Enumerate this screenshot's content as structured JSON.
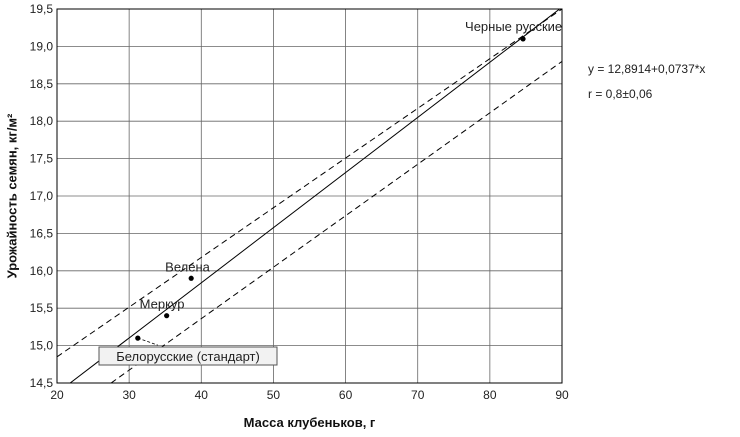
{
  "chart_data": {
    "type": "scatter",
    "title": "",
    "xlabel": "Масса клубеньков, г",
    "ylabel": "Урожайность семян, кг/м²",
    "xlim": [
      20,
      90
    ],
    "ylim": [
      14.5,
      19.5
    ],
    "x_ticks": [
      20,
      30,
      40,
      50,
      60,
      70,
      80,
      90
    ],
    "y_ticks": [
      14.5,
      15.0,
      15.5,
      16.0,
      16.5,
      17.0,
      17.5,
      18.0,
      18.5,
      19.0,
      19.5
    ],
    "x_tick_labels": [
      "20",
      "30",
      "40",
      "50",
      "60",
      "70",
      "80",
      "90"
    ],
    "y_tick_labels": [
      "14,5",
      "15,0",
      "15,5",
      "16,0",
      "16,5",
      "17,0",
      "17,5",
      "18,0",
      "18,5",
      "19,0",
      "19,5"
    ],
    "grid": true,
    "points": [
      {
        "x": 31.2,
        "y": 15.1,
        "label": "Белорусские (стандарт)"
      },
      {
        "x": 35.2,
        "y": 15.4,
        "label": "Меркур"
      },
      {
        "x": 38.6,
        "y": 15.9,
        "label": "Велена"
      },
      {
        "x": 84.6,
        "y": 19.1,
        "label": "Черные русские"
      }
    ],
    "regression": {
      "intercept": 12.8914,
      "slope": 0.0737,
      "equation": "y = 12,8914+0,0737*x",
      "r": "r = 0,8±0,06"
    },
    "confidence_lower": [
      [
        27.5,
        14.5
      ],
      [
        90,
        18.8
      ]
    ],
    "confidence_upper": [
      [
        20,
        14.85
      ],
      [
        90,
        19.5
      ]
    ],
    "line_color": "#000000",
    "grid_color": "#666666"
  }
}
